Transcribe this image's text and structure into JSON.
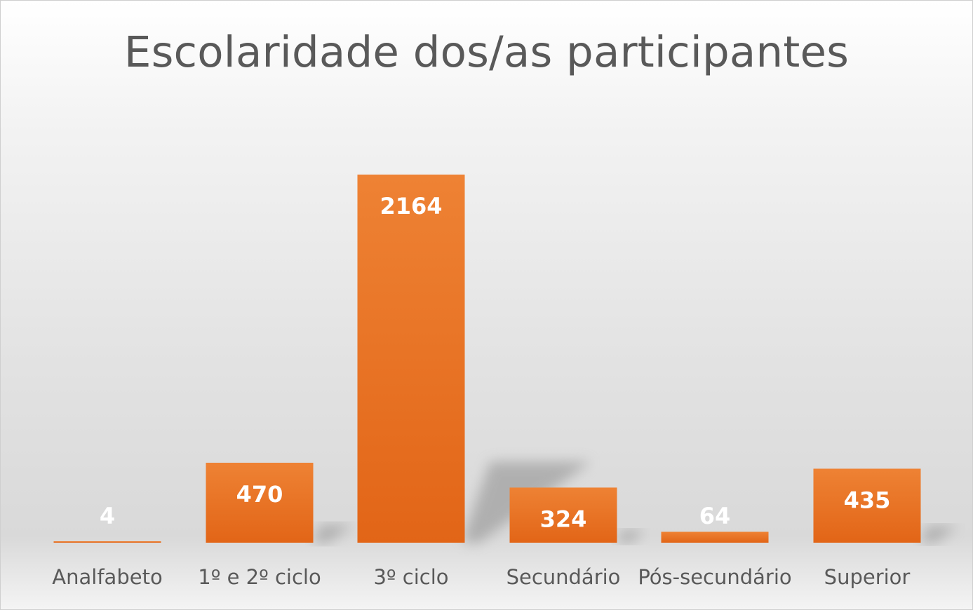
{
  "chart_data": {
    "type": "bar",
    "title": "Escolaridade dos/as participantes",
    "xlabel": "",
    "ylabel": "",
    "categories": [
      "Analfabeto",
      "1º e 2º ciclo",
      "3º ciclo",
      "Secundário",
      "Pós-secundário",
      "Superior"
    ],
    "values": [
      4,
      470,
      2164,
      324,
      64,
      435
    ],
    "ylim": [
      0,
      2300
    ],
    "grid": false,
    "legend": "none",
    "bar_color": "#E26517",
    "bar_color_light": "#EE8234",
    "data_label_color": "#FFFFFF",
    "data_labels": [
      "4",
      "470",
      "2164",
      "324",
      "64",
      "435"
    ]
  }
}
